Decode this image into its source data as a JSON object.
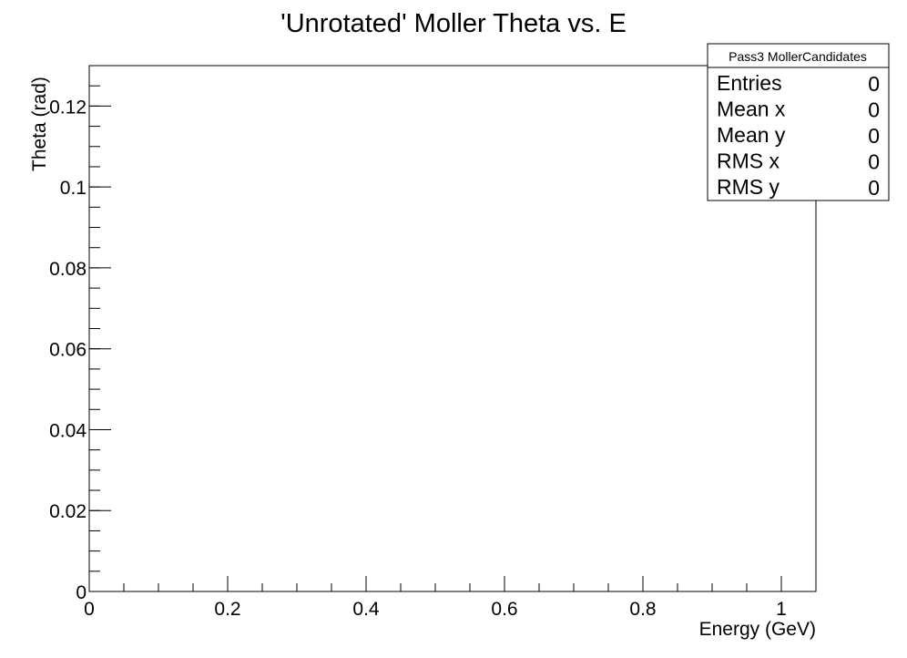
{
  "chart_data": {
    "type": "heatmap",
    "title": "'Unrotated' Moller Theta vs. E",
    "xlabel": "Energy (GeV)",
    "ylabel": "Theta (rad)",
    "xlim": [
      0,
      1.05
    ],
    "ylim": [
      0,
      0.13
    ],
    "x_ticks": [
      0,
      0.2,
      0.4,
      0.6,
      0.8,
      1
    ],
    "y_ticks": [
      0,
      0.02,
      0.04,
      0.06,
      0.08,
      0.1,
      0.12
    ],
    "x_tick_labels": [
      "0",
      "0.2",
      "0.4",
      "0.6",
      "0.8",
      "1"
    ],
    "y_tick_labels": [
      "0",
      "0.02",
      "0.04",
      "0.06",
      "0.08",
      "0.1",
      "0.12"
    ],
    "x_minor_step": 0.05,
    "y_minor_step": 0.005,
    "grid": false,
    "legend": "none",
    "points": [],
    "stats_box": {
      "name": "Pass3 MollerCandidates",
      "placement": "top-right",
      "rows": [
        {
          "label": "Entries",
          "value": "0"
        },
        {
          "label": "Mean x",
          "value": "0"
        },
        {
          "label": "Mean y",
          "value": "0"
        },
        {
          "label": "RMS x",
          "value": "0"
        },
        {
          "label": "RMS y",
          "value": "0"
        }
      ]
    }
  },
  "colors": {
    "background": "#ffffff",
    "axis": "#000000"
  }
}
